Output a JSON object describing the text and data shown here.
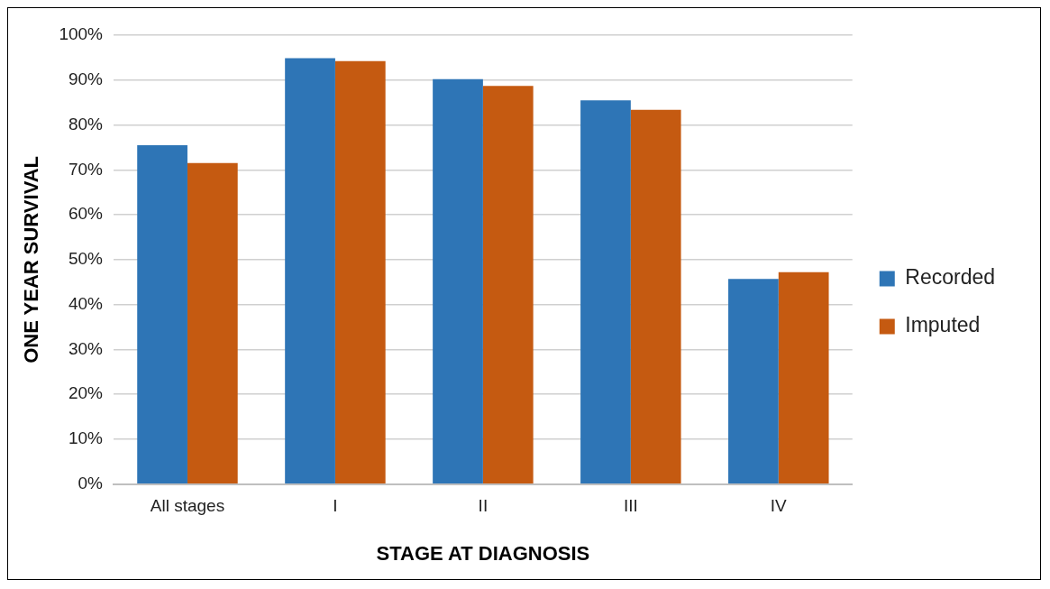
{
  "chart_data": {
    "type": "bar",
    "xlabel": "STAGE AT DIAGNOSIS",
    "ylabel": "ONE YEAR SURVIVAL",
    "categories": [
      "All stages",
      "I",
      "II",
      "III",
      "IV"
    ],
    "series": [
      {
        "name": "Recorded",
        "color": "#2e75b6",
        "values": [
          75.5,
          94.9,
          90.2,
          85.5,
          45.7
        ]
      },
      {
        "name": "Imputed",
        "color": "#c55a11",
        "values": [
          71.5,
          94.2,
          88.7,
          83.4,
          47.2
        ]
      }
    ],
    "ylim": [
      0,
      100
    ],
    "yticks": [
      {
        "value": 0,
        "label": "0%"
      },
      {
        "value": 10,
        "label": "10%"
      },
      {
        "value": 20,
        "label": "20%"
      },
      {
        "value": 30,
        "label": "30%"
      },
      {
        "value": 40,
        "label": "40%"
      },
      {
        "value": 50,
        "label": "50%"
      },
      {
        "value": 60,
        "label": "60%"
      },
      {
        "value": 70,
        "label": "70%"
      },
      {
        "value": 80,
        "label": "80%"
      },
      {
        "value": 90,
        "label": "90%"
      },
      {
        "value": 100,
        "label": "100%"
      }
    ],
    "grid": "y",
    "legend": "right"
  }
}
